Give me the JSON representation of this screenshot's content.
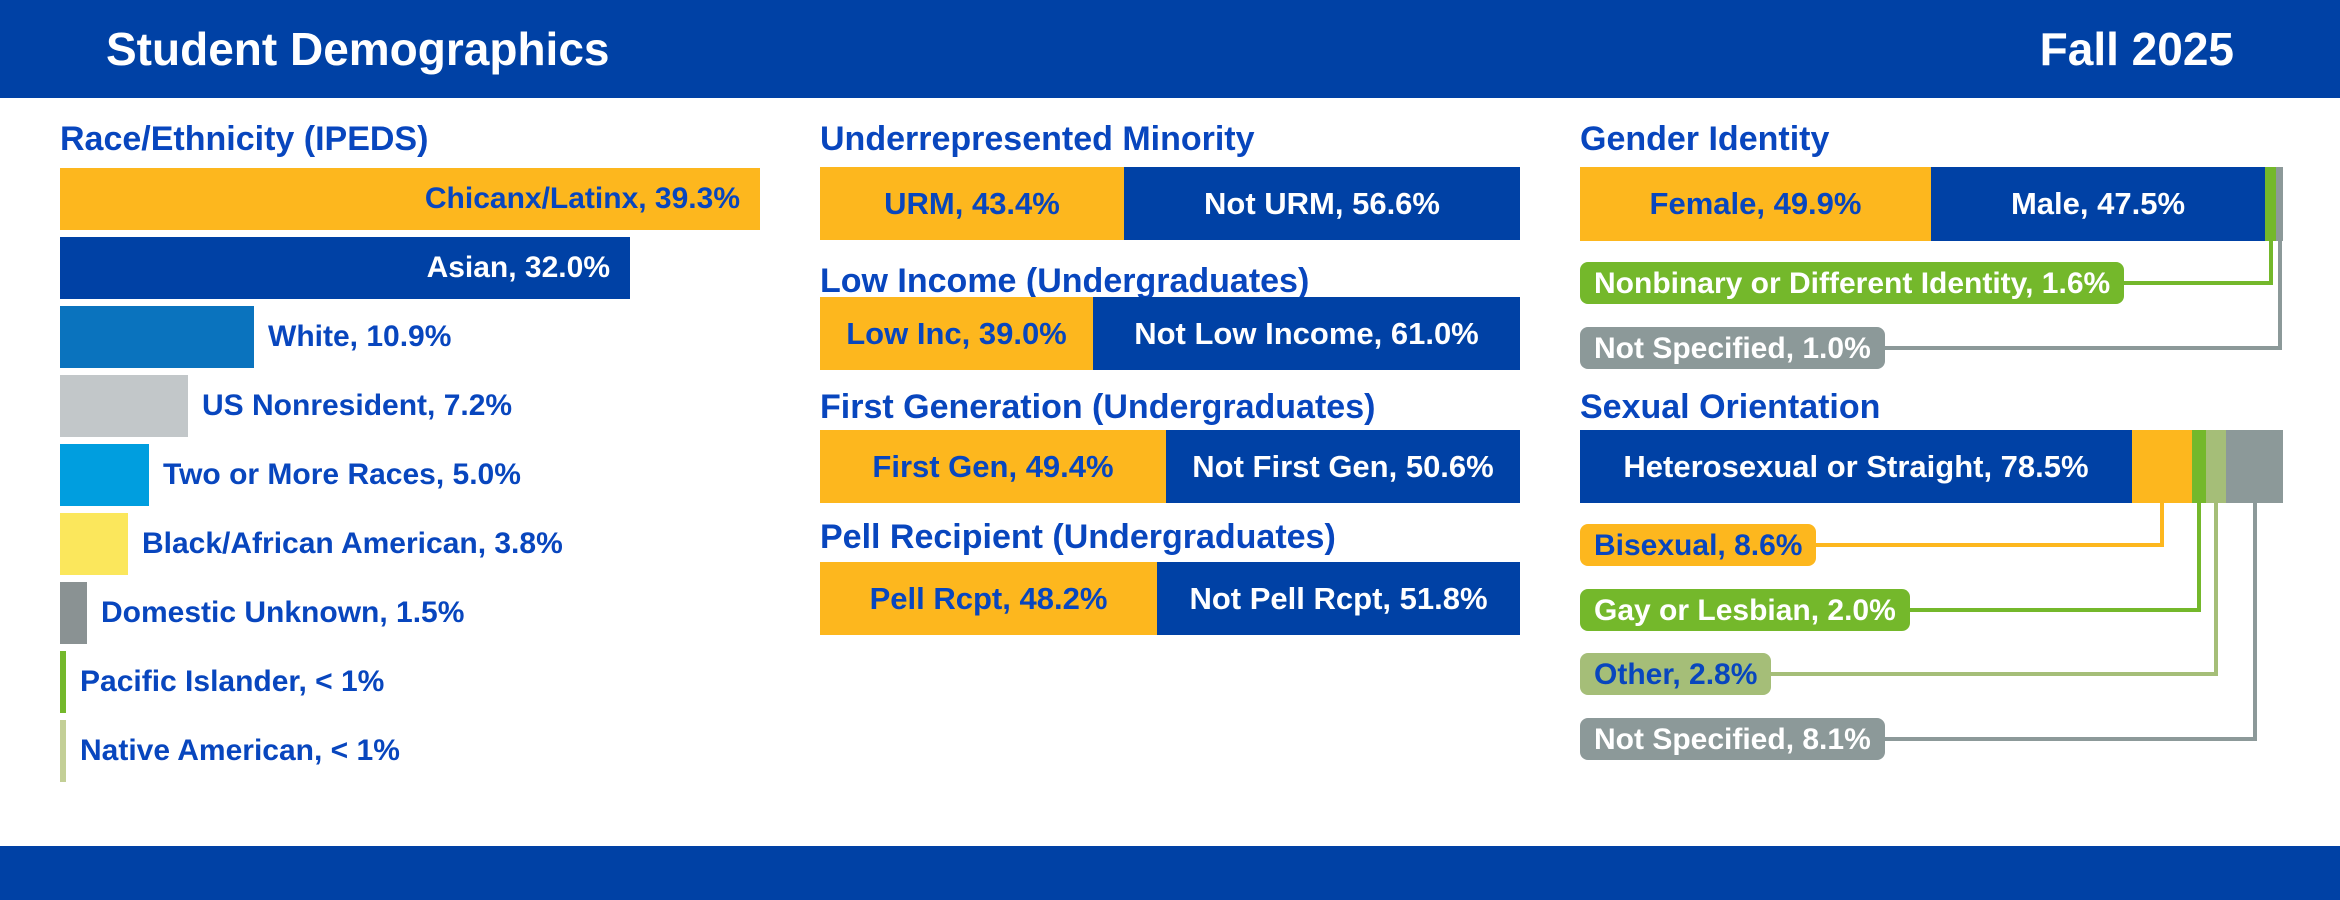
{
  "header": {
    "title": "Student Demographics",
    "term": "Fall 2025"
  },
  "colors": {
    "brand_blue": "#0041A5",
    "text_blue": "#0846BE",
    "gold": "#FDB71E",
    "medium_blue": "#0A73BE",
    "light_gray": "#C2C7C9",
    "cyan": "#009EDF",
    "yellow": "#FBE75C",
    "dark_gray": "#8A9293",
    "green": "#74B82B",
    "sage": "#A5BE78",
    "callout_gray": "#8C9999",
    "pale_green": "#C3CF96",
    "white": "#FFFFFF"
  },
  "chart_data": [
    {
      "type": "bar",
      "orientation": "horizontal",
      "title": "Race/Ethnicity (IPEDS)",
      "max_value": 39.3,
      "bars": [
        {
          "label": "Chicanx/Latinx, 39.3%",
          "value": 39.3,
          "color": "gold",
          "label_position": "inside",
          "label_color": "text_blue"
        },
        {
          "label": "Asian, 32.0%",
          "value": 32.0,
          "color": "brand_blue",
          "label_position": "inside",
          "label_color": "white"
        },
        {
          "label": "White, 10.9%",
          "value": 10.9,
          "color": "medium_blue",
          "label_position": "outside",
          "label_color": "text_blue"
        },
        {
          "label": "US Nonresident, 7.2%",
          "value": 7.2,
          "color": "light_gray",
          "label_position": "outside",
          "label_color": "text_blue"
        },
        {
          "label": "Two or More Races, 5.0%",
          "value": 5.0,
          "color": "cyan",
          "label_position": "outside",
          "label_color": "text_blue"
        },
        {
          "label": "Black/African American, 3.8%",
          "value": 3.8,
          "color": "yellow",
          "label_position": "outside",
          "label_color": "text_blue"
        },
        {
          "label": "Domestic Unknown, 1.5%",
          "value": 1.5,
          "color": "dark_gray",
          "label_position": "outside",
          "label_color": "text_blue"
        },
        {
          "label": "Pacific Islander, < 1%",
          "value": 0.35,
          "color": "green",
          "label_position": "outside",
          "label_color": "text_blue"
        },
        {
          "label": "Native American, < 1%",
          "value": 0.35,
          "color": "pale_green",
          "label_position": "outside",
          "label_color": "text_blue"
        }
      ]
    },
    {
      "type": "stacked-bar-group",
      "charts": [
        {
          "title": "Underrepresented Minority",
          "segments": [
            {
              "label": "URM, 43.4%",
              "value": 43.4,
              "color": "gold",
              "text": "text_blue"
            },
            {
              "label": "Not URM, 56.6%",
              "value": 56.6,
              "color": "brand_blue",
              "text": "white"
            }
          ]
        },
        {
          "title": "Low Income (Undergraduates)",
          "segments": [
            {
              "label": "Low Inc, 39.0%",
              "value": 39.0,
              "color": "gold",
              "text": "text_blue"
            },
            {
              "label": "Not Low Income, 61.0%",
              "value": 61.0,
              "color": "brand_blue",
              "text": "white"
            }
          ]
        },
        {
          "title": "First Generation (Undergraduates)",
          "segments": [
            {
              "label": "First Gen, 49.4%",
              "value": 49.4,
              "color": "gold",
              "text": "text_blue"
            },
            {
              "label": "Not First Gen, 50.6%",
              "value": 50.6,
              "color": "brand_blue",
              "text": "white"
            }
          ]
        },
        {
          "title": "Pell Recipient (Undergraduates)",
          "segments": [
            {
              "label": "Pell Rcpt, 48.2%",
              "value": 48.2,
              "color": "gold",
              "text": "text_blue"
            },
            {
              "label": "Not Pell Rcpt, 51.8%",
              "value": 51.8,
              "color": "brand_blue",
              "text": "white"
            }
          ]
        }
      ]
    },
    {
      "type": "stacked-bar-with-callouts",
      "charts": [
        {
          "title": "Gender Identity",
          "segments": [
            {
              "label": "Female, 49.9%",
              "value": 49.9,
              "color": "gold",
              "text": "text_blue",
              "in_bar": true
            },
            {
              "label": "Male, 47.5%",
              "value": 47.5,
              "color": "brand_blue",
              "text": "white",
              "in_bar": true
            },
            {
              "label": "Nonbinary or Different Identity, 1.6%",
              "value": 1.6,
              "color": "green",
              "text": "white",
              "in_bar": false
            },
            {
              "label": "Not Specified, 1.0%",
              "value": 1.0,
              "color": "callout_gray",
              "text": "white",
              "in_bar": false
            }
          ]
        },
        {
          "title": "Sexual Orientation",
          "segments": [
            {
              "label": "Heterosexual or Straight, 78.5%",
              "value": 78.5,
              "color": "brand_blue",
              "text": "white",
              "in_bar": true
            },
            {
              "label": "Bisexual, 8.6%",
              "value": 8.6,
              "color": "gold",
              "text": "text_blue",
              "in_bar": false
            },
            {
              "label": "Gay or Lesbian, 2.0%",
              "value": 2.0,
              "color": "green",
              "text": "white",
              "in_bar": false
            },
            {
              "label": "Other, 2.8%",
              "value": 2.8,
              "color": "sage",
              "text": "text_blue",
              "in_bar": false
            },
            {
              "label": "Not Specified, 8.1%",
              "value": 8.1,
              "color": "callout_gray",
              "text": "white",
              "in_bar": false
            }
          ]
        }
      ]
    }
  ]
}
